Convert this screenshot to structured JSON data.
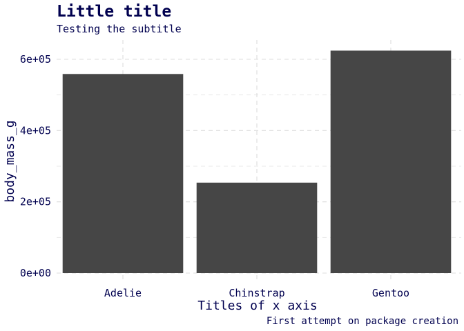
{
  "chart_data": {
    "type": "bar",
    "title": "Little title",
    "subtitle": "Testing the subtitle",
    "caption": "First attempt on package creation",
    "xlabel": "Titles of x axis",
    "ylabel": "body_mass_g",
    "categories": [
      "Adelie",
      "Chinstrap",
      "Gentoo"
    ],
    "values": [
      558800,
      253850,
      624350
    ],
    "ylim": [
      0,
      640000
    ],
    "yticks": [
      0,
      200000,
      400000,
      600000
    ],
    "ytick_labels": [
      "0e+00",
      "2e+05",
      "4e+05",
      "6e+05"
    ],
    "grid": true,
    "legend": "none",
    "bar_color": "#464646",
    "text_color": "#00004f"
  }
}
